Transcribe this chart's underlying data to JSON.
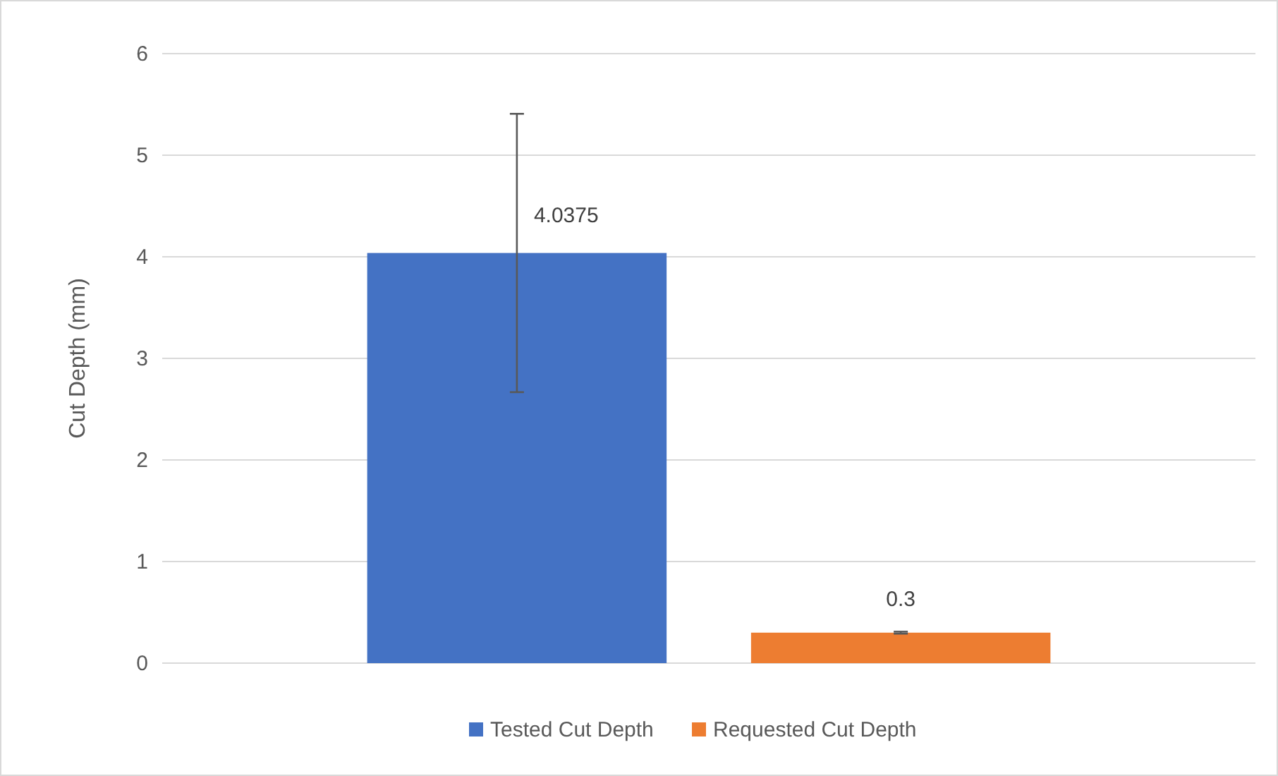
{
  "chart_data": {
    "type": "bar",
    "ylabel": "Cut Depth (mm)",
    "categories": [
      null
    ],
    "series": [
      {
        "name": "Tested Cut Depth",
        "color": "#4472c4",
        "values": [
          4.0375
        ],
        "errors": [
          1.37
        ]
      },
      {
        "name": "Requested Cut Depth",
        "color": "#ed7d31",
        "values": [
          0.3
        ],
        "errors": [
          0.01
        ]
      }
    ],
    "ylim": [
      0,
      6
    ],
    "yticks": [
      0,
      1,
      2,
      3,
      4,
      5,
      6
    ],
    "grid": "y",
    "legend": "bottom",
    "data_labels": true
  }
}
